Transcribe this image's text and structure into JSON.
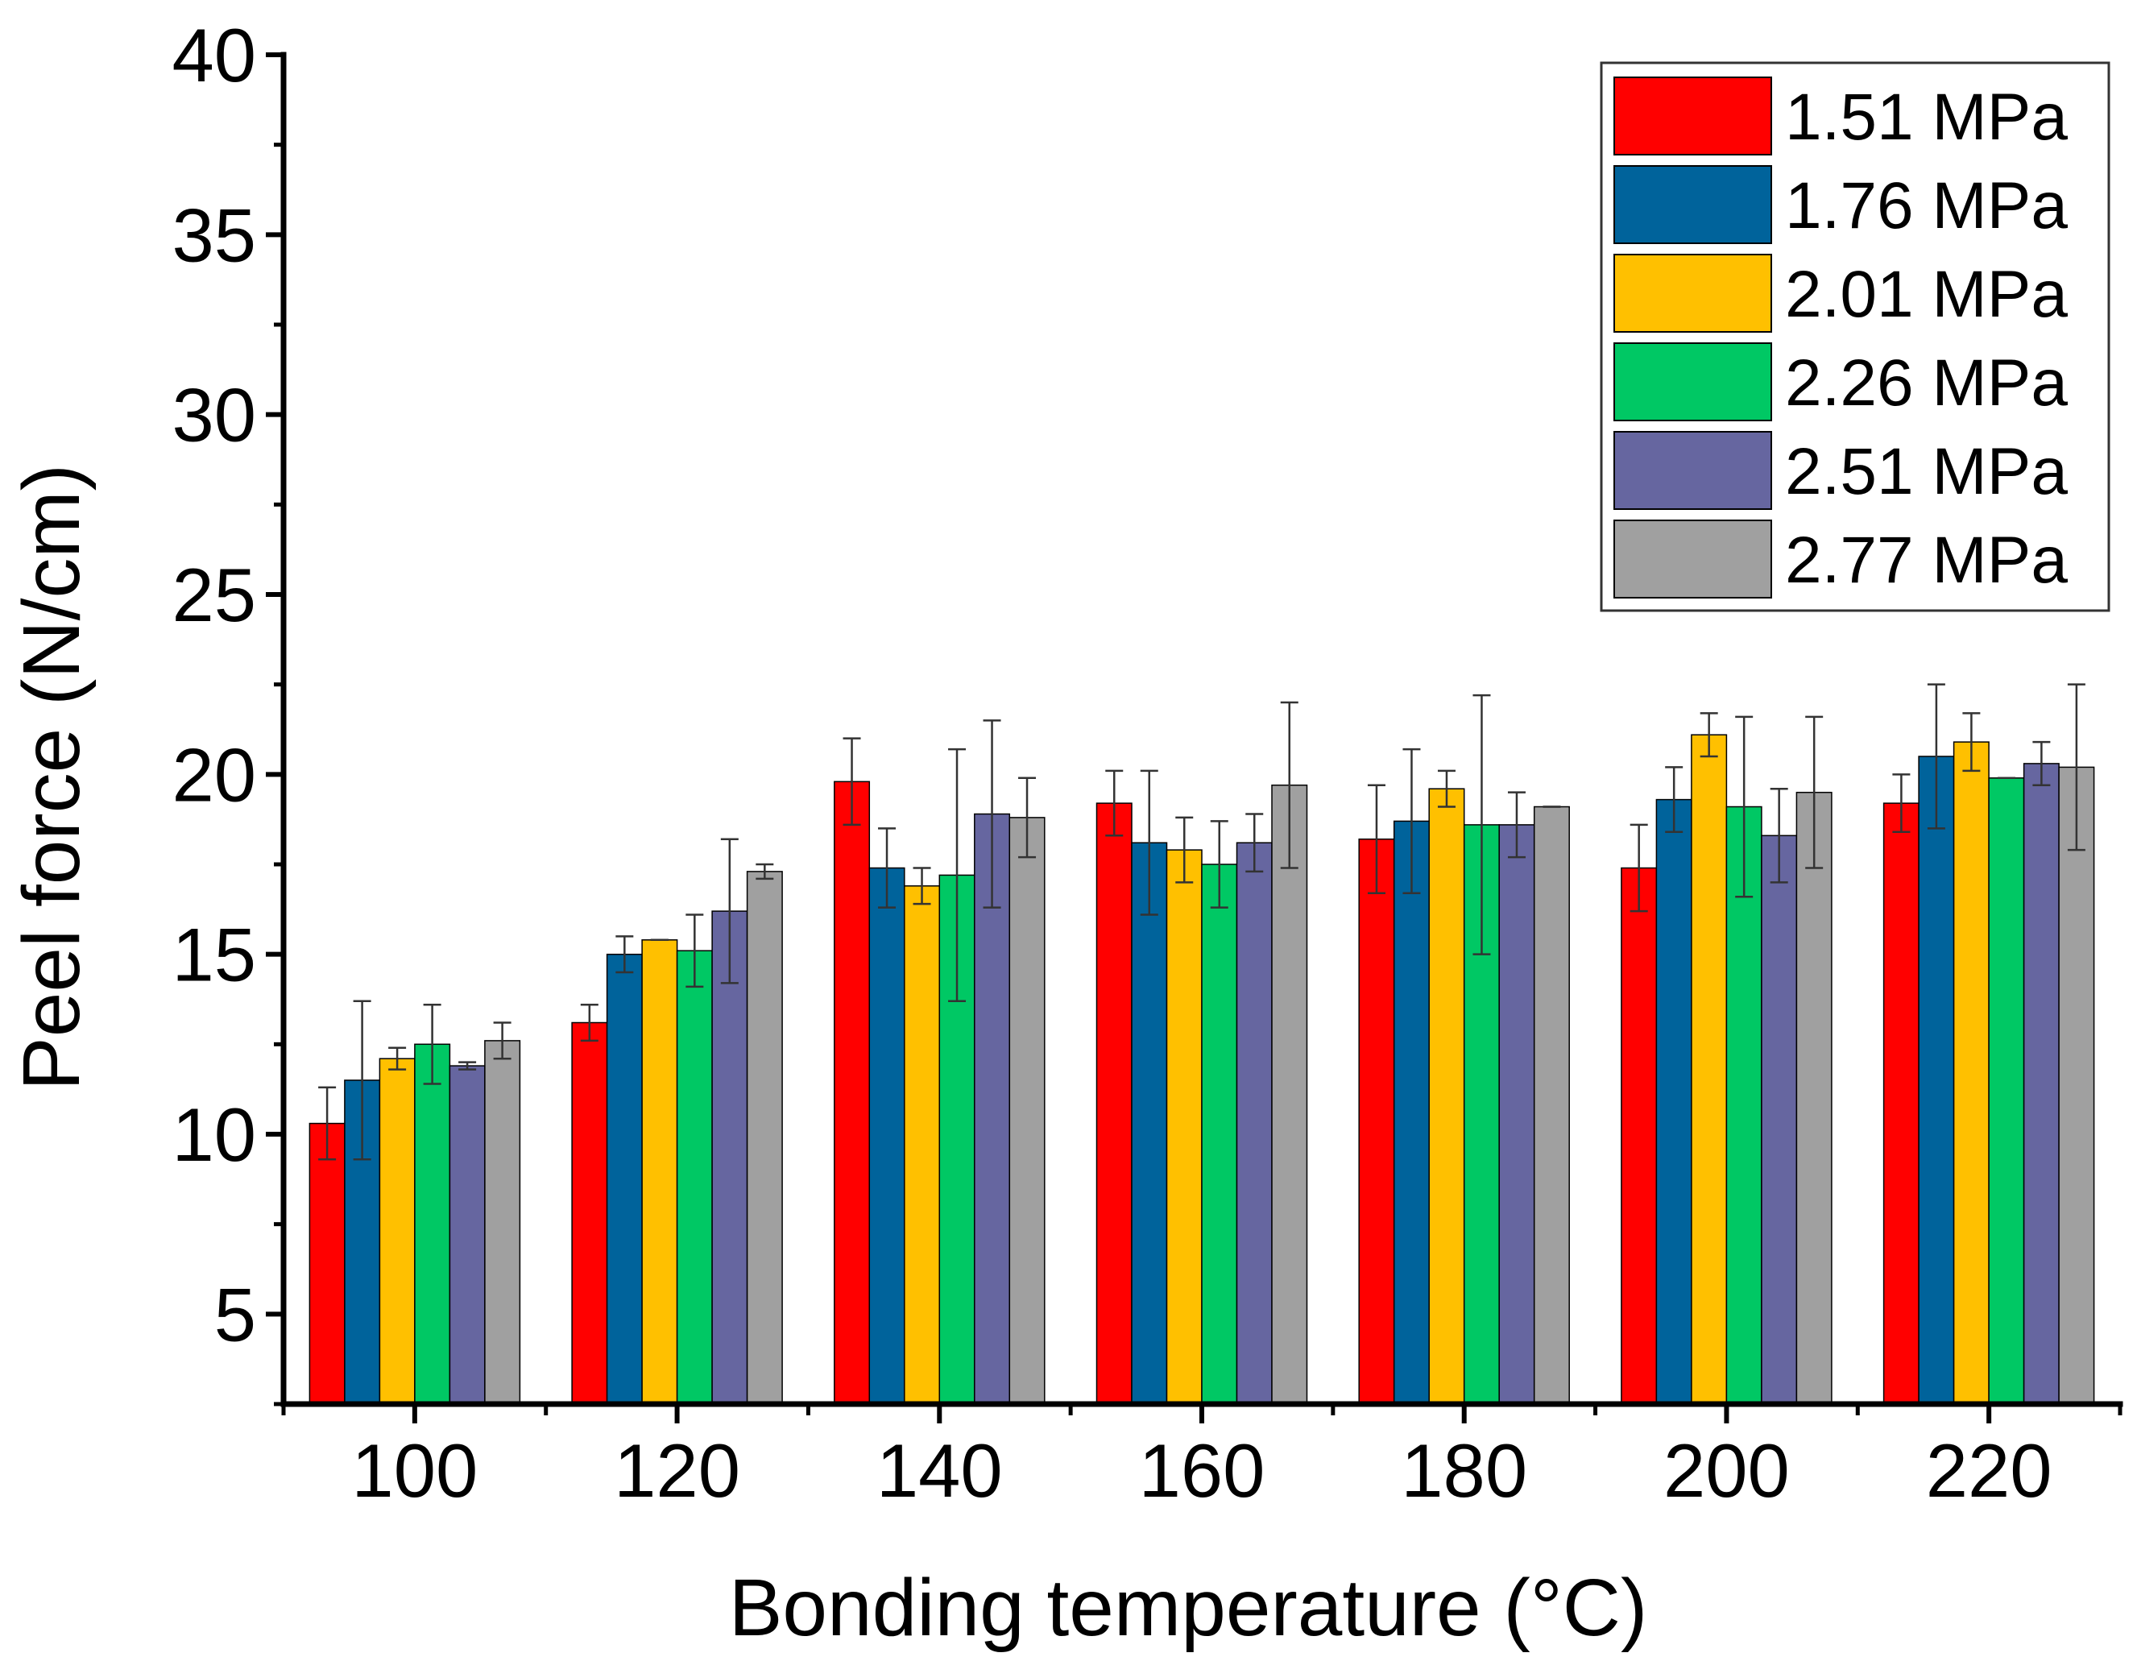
{
  "chart_data": {
    "type": "bar",
    "title": "",
    "xlabel": "Bonding temperature (°C)",
    "ylabel": "Peel force (N/cm)",
    "ylim": [
      2.5,
      40
    ],
    "yticks": [
      5,
      10,
      15,
      20,
      25,
      30,
      35,
      40
    ],
    "ytick_labels": [
      "5",
      "10",
      "15",
      "20",
      "25",
      "30",
      "35",
      "40"
    ],
    "categories": [
      "100",
      "120",
      "140",
      "160",
      "180",
      "200",
      "220"
    ],
    "legend_position": "top-right",
    "series": [
      {
        "name": "1.51 MPa",
        "color": "#ff0000",
        "values": [
          10.3,
          13.1,
          19.8,
          19.2,
          18.2,
          17.4,
          19.2
        ],
        "errors": [
          1.0,
          0.5,
          1.2,
          0.9,
          1.5,
          1.2,
          0.8
        ]
      },
      {
        "name": "1.76 MPa",
        "color": "#00639b",
        "values": [
          11.5,
          15.0,
          17.4,
          18.1,
          18.7,
          19.3,
          20.5
        ],
        "errors": [
          2.2,
          0.5,
          1.1,
          2.0,
          2.0,
          0.9,
          2.0
        ]
      },
      {
        "name": "2.01 MPa",
        "color": "#ffc000",
        "values": [
          12.1,
          15.4,
          16.9,
          17.9,
          19.6,
          21.1,
          20.9
        ],
        "errors": [
          0.3,
          0.0,
          0.5,
          0.9,
          0.5,
          0.6,
          0.8
        ]
      },
      {
        "name": "2.26 MPa",
        "color": "#00c864",
        "values": [
          12.5,
          15.1,
          17.2,
          17.5,
          18.6,
          19.1,
          19.9
        ],
        "errors": [
          1.1,
          1.0,
          3.5,
          1.2,
          3.6,
          2.5,
          0.0
        ]
      },
      {
        "name": "2.51 MPa",
        "color": "#6666a0",
        "values": [
          11.9,
          16.2,
          18.9,
          18.1,
          18.6,
          18.3,
          20.3
        ],
        "errors": [
          0.1,
          2.0,
          2.6,
          0.8,
          0.9,
          1.3,
          0.6
        ]
      },
      {
        "name": "2.77 MPa",
        "color": "#a0a0a0",
        "values": [
          12.6,
          17.3,
          18.8,
          19.7,
          19.1,
          19.5,
          20.2
        ],
        "errors": [
          0.5,
          0.2,
          1.1,
          2.3,
          0.0,
          2.1,
          2.3
        ]
      }
    ]
  }
}
